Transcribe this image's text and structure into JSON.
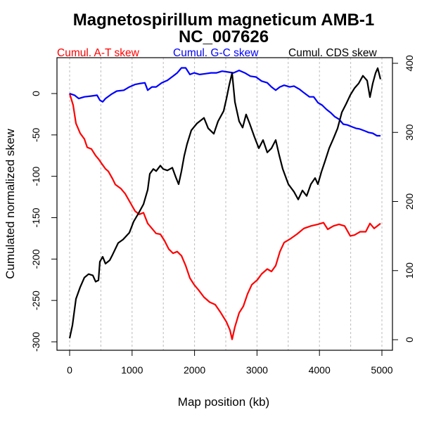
{
  "chart_data": {
    "type": "line",
    "title": "Magnetospirillum magneticum AMB-1",
    "subtitle": "NC_007626",
    "xlabel": "Map position (kb)",
    "ylabel": "Cumulated normalized skew",
    "xlim": [
      -200,
      5200
    ],
    "ylim_left": [
      -310,
      40
    ],
    "ylim_right": [
      -13,
      400
    ],
    "x_ticks": [
      0,
      1000,
      2000,
      3000,
      4000,
      5000
    ],
    "x_tick_labels": [
      "0",
      "1000",
      "2000",
      "3000",
      "4000",
      "5000"
    ],
    "y_left_ticks": [
      0,
      -50,
      -100,
      -150,
      -200,
      -250,
      -300
    ],
    "y_left_tick_labels": [
      "0",
      "-50",
      "-100",
      "-150",
      "-200",
      "-250",
      "-300"
    ],
    "y_right_ticks": [
      0,
      100,
      200,
      300,
      400
    ],
    "y_right_tick_labels": [
      "0",
      "100",
      "200",
      "300",
      "400"
    ],
    "grid": "vertical dotted every 500 kb",
    "legend_placement": "top, above plot",
    "series": [
      {
        "name": "Cumul. A-T skew",
        "color": "#ff0000",
        "axis": "left",
        "x": [
          0,
          56,
          101,
          169,
          236,
          281,
          349,
          417,
          462,
          507,
          574,
          619,
          687,
          732,
          822,
          890,
          980,
          1047,
          1115,
          1182,
          1250,
          1318,
          1385,
          1453,
          1520,
          1588,
          1655,
          1723,
          1790,
          1858,
          1926,
          1993,
          2061,
          2151,
          2241,
          2331,
          2421,
          2511,
          2568,
          2601,
          2646,
          2714,
          2782,
          2849,
          2917,
          3007,
          3074,
          3164,
          3232,
          3300,
          3367,
          3435,
          3525,
          3638,
          3750,
          3863,
          3975,
          4065,
          4133,
          4223,
          4313,
          4403,
          4493,
          4561,
          4651,
          4741,
          4809,
          4876,
          4977
        ],
        "values": [
          0,
          -14,
          -36,
          -48,
          -55,
          -65,
          -67,
          -75,
          -79,
          -84,
          -91,
          -94,
          -103,
          -110,
          -115,
          -121,
          -133,
          -142,
          -146,
          -144,
          -157,
          -163,
          -169,
          -170,
          -178,
          -188,
          -193,
          -191,
          -196,
          -208,
          -223,
          -231,
          -237,
          -246,
          -252,
          -255,
          -265,
          -276,
          -286,
          -297,
          -282,
          -265,
          -257,
          -242,
          -231,
          -225,
          -218,
          -212,
          -215,
          -208,
          -191,
          -180,
          -176,
          -170,
          -163,
          -160,
          -158,
          -156,
          -164,
          -160,
          -158,
          -160,
          -172,
          -171,
          -167,
          -167,
          -157,
          -163,
          -157
        ]
      },
      {
        "name": "Cumul. G-C skew",
        "color": "#0000ff",
        "axis": "left",
        "x": [
          0,
          79,
          146,
          236,
          349,
          439,
          484,
          529,
          574,
          664,
          755,
          867,
          957,
          1047,
          1115,
          1205,
          1250,
          1318,
          1385,
          1475,
          1565,
          1655,
          1723,
          1790,
          1858,
          1926,
          1993,
          2083,
          2173,
          2263,
          2353,
          2443,
          2534,
          2624,
          2714,
          2804,
          2894,
          2984,
          3074,
          3164,
          3232,
          3300,
          3367,
          3435,
          3525,
          3592,
          3683,
          3750,
          3840,
          3908,
          3975,
          4043,
          4110,
          4178,
          4245,
          4313,
          4381,
          4448,
          4516,
          4583,
          4651,
          4718,
          4786,
          4854,
          4921,
          4977
        ],
        "values": [
          0,
          -2,
          -6,
          -4,
          -3,
          -2,
          -8,
          -10,
          -6,
          -1,
          3,
          4,
          8,
          11,
          12,
          13,
          4,
          8,
          8,
          13,
          16,
          21,
          25,
          31,
          31,
          23,
          25,
          23,
          24,
          25,
          25,
          27,
          26,
          25,
          28,
          25,
          21,
          20,
          15,
          13,
          8,
          4,
          8,
          10,
          8,
          9,
          5,
          1,
          -4,
          -4,
          -11,
          -14,
          -19,
          -23,
          -28,
          -31,
          -37,
          -38,
          -40,
          -42,
          -43,
          -45,
          -47,
          -48,
          -51,
          -51
        ]
      },
      {
        "name": "Cumul. CDS skew",
        "color": "#000000",
        "axis": "right",
        "x": [
          0,
          45,
          101,
          169,
          236,
          304,
          372,
          417,
          462,
          484,
          529,
          574,
          642,
          687,
          777,
          856,
          957,
          1025,
          1104,
          1182,
          1250,
          1284,
          1340,
          1385,
          1453,
          1498,
          1565,
          1644,
          1700,
          1745,
          1790,
          1835,
          1880,
          1948,
          2038,
          2151,
          2218,
          2308,
          2376,
          2466,
          2511,
          2556,
          2601,
          2646,
          2714,
          2770,
          2826,
          2882,
          2961,
          3029,
          3097,
          3164,
          3232,
          3300,
          3356,
          3412,
          3502,
          3592,
          3660,
          3727,
          3795,
          3863,
          3930,
          3975,
          4032,
          4088,
          4155,
          4223,
          4291,
          4358,
          4426,
          4493,
          4561,
          4628,
          4696,
          4764,
          4809,
          4854,
          4899,
          4932,
          4977
        ],
        "values": [
          2,
          21,
          59,
          76,
          90,
          95,
          93,
          84,
          86,
          113,
          120,
          110,
          115,
          123,
          140,
          145,
          155,
          171,
          183,
          196,
          217,
          240,
          247,
          244,
          252,
          247,
          245,
          249,
          235,
          225,
          244,
          266,
          283,
          303,
          313,
          321,
          306,
          298,
          316,
          331,
          349,
          369,
          386,
          344,
          316,
          307,
          326,
          313,
          293,
          277,
          289,
          271,
          277,
          289,
          267,
          247,
          225,
          214,
          203,
          216,
          208,
          225,
          234,
          225,
          243,
          258,
          277,
          291,
          306,
          329,
          341,
          354,
          364,
          371,
          382,
          375,
          351,
          371,
          386,
          393,
          377
        ]
      }
    ]
  }
}
